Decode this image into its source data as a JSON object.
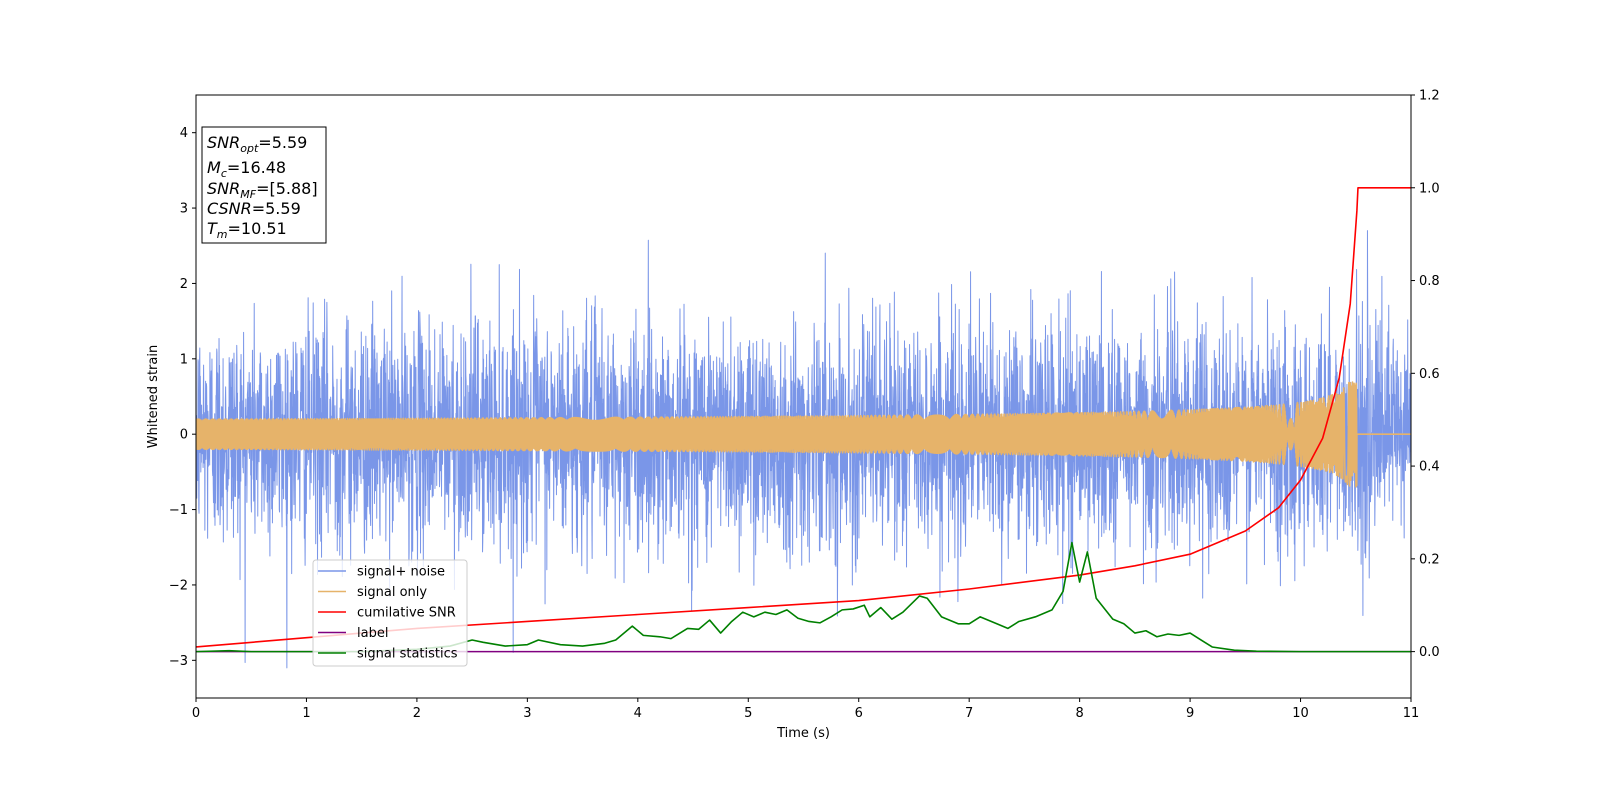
{
  "chart_data": {
    "type": "line",
    "xlabel": "Time (s)",
    "ylabel": "Whitened strain",
    "xlim": [
      0,
      11
    ],
    "ylim": [
      -3.5,
      4.5
    ],
    "y2lim": [
      -0.1,
      1.2
    ],
    "x_ticks": [
      "0",
      "1",
      "2",
      "3",
      "4",
      "5",
      "6",
      "7",
      "8",
      "9",
      "10",
      "11"
    ],
    "y_ticks": [
      "−3",
      "−2",
      "−1",
      "0",
      "1",
      "2",
      "3",
      "4"
    ],
    "y2_ticks": [
      "0.0",
      "0.2",
      "0.4",
      "0.6",
      "0.8",
      "1.0",
      "1.2"
    ],
    "grid": false,
    "legend_position": "lower-left",
    "info_box": [
      {
        "main": "SNR",
        "sub": "opt",
        "value": "=5.59"
      },
      {
        "main": "M",
        "sub": "c",
        "value": "=16.48"
      },
      {
        "main": "SNR",
        "sub": "MF",
        "value": "=[5.88]"
      },
      {
        "main": "CSNR",
        "sub": "",
        "value": "=5.59"
      },
      {
        "main": "T",
        "sub": "m",
        "value": "=10.51"
      }
    ],
    "series": [
      {
        "name": "signal+ noise",
        "axis": "left",
        "color": "#7a96e8",
        "noise": {
          "sigma": 0.75,
          "ymin": -3.1,
          "ymax": 2.7
        }
      },
      {
        "name": "signal only",
        "axis": "left",
        "color": "#e6b36a",
        "chirp": {
          "merger_time": 10.51,
          "peak_amplitude": 0.7
        }
      },
      {
        "name": "cumilative SNR",
        "axis": "right",
        "color": "#ff0000",
        "x": [
          0,
          1,
          2,
          3,
          4,
          5,
          6,
          7,
          8,
          8.5,
          9,
          9.5,
          9.8,
          10.0,
          10.2,
          10.35,
          10.45,
          10.51,
          10.52,
          11
        ],
        "values": [
          0.01,
          0.03,
          0.05,
          0.065,
          0.08,
          0.095,
          0.11,
          0.135,
          0.165,
          0.185,
          0.21,
          0.26,
          0.31,
          0.37,
          0.46,
          0.59,
          0.75,
          0.95,
          1.0,
          1.0
        ]
      },
      {
        "name": "label",
        "axis": "right",
        "color": "#800080",
        "x": [
          0,
          11
        ],
        "values": [
          0,
          0
        ]
      },
      {
        "name": "signal statistics",
        "axis": "right",
        "color": "#008000",
        "x": [
          0,
          0.3,
          0.5,
          1.0,
          1.5,
          2.0,
          2.3,
          2.5,
          2.6,
          2.8,
          3.0,
          3.1,
          3.3,
          3.5,
          3.7,
          3.8,
          3.95,
          4.05,
          4.2,
          4.3,
          4.45,
          4.55,
          4.65,
          4.75,
          4.85,
          4.95,
          5.05,
          5.15,
          5.25,
          5.35,
          5.45,
          5.55,
          5.65,
          5.75,
          5.85,
          5.95,
          6.05,
          6.1,
          6.2,
          6.3,
          6.4,
          6.55,
          6.62,
          6.75,
          6.9,
          7.0,
          7.1,
          7.25,
          7.35,
          7.45,
          7.6,
          7.75,
          7.85,
          7.93,
          8.0,
          8.07,
          8.15,
          8.3,
          8.4,
          8.5,
          8.6,
          8.7,
          8.8,
          8.9,
          9.0,
          9.1,
          9.2,
          9.4,
          9.6,
          10.0,
          10.5,
          11.0
        ],
        "values": [
          0.0,
          0.002,
          0.0,
          0.0,
          0.0,
          0.005,
          0.012,
          0.025,
          0.02,
          0.012,
          0.015,
          0.025,
          0.015,
          0.012,
          0.018,
          0.025,
          0.055,
          0.035,
          0.032,
          0.028,
          0.05,
          0.048,
          0.068,
          0.04,
          0.065,
          0.085,
          0.075,
          0.085,
          0.08,
          0.09,
          0.072,
          0.065,
          0.062,
          0.075,
          0.09,
          0.092,
          0.1,
          0.075,
          0.095,
          0.07,
          0.085,
          0.12,
          0.115,
          0.075,
          0.06,
          0.06,
          0.075,
          0.06,
          0.05,
          0.065,
          0.075,
          0.09,
          0.13,
          0.235,
          0.15,
          0.215,
          0.115,
          0.07,
          0.06,
          0.04,
          0.045,
          0.032,
          0.038,
          0.035,
          0.04,
          0.025,
          0.01,
          0.003,
          0.001,
          0.0,
          0.0,
          0.0
        ]
      }
    ]
  }
}
